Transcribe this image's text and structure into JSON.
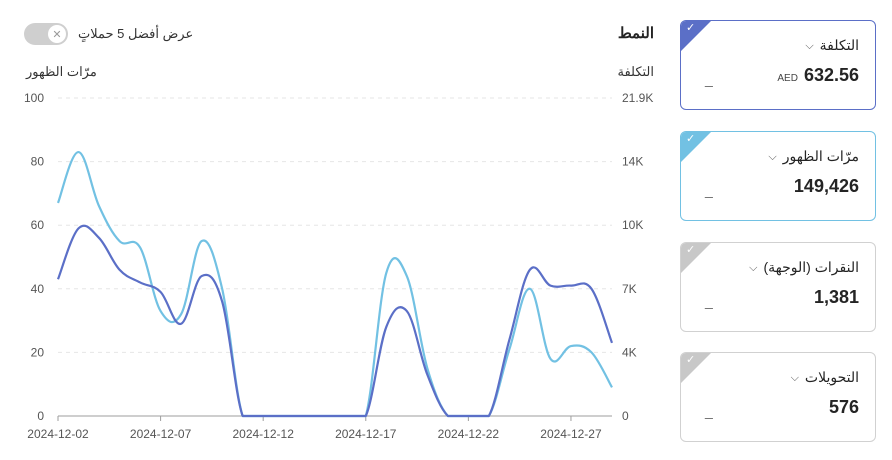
{
  "header": {
    "section_title": "النمط",
    "toggle_label": "عرض أفضل 5 حملاتٍ",
    "toggle_on": false,
    "left_axis_title": "مرّات الظهور",
    "right_axis_title": "التكلفة"
  },
  "chart_data": {
    "type": "line",
    "x": [
      "2024-12-02",
      "2024-12-03",
      "2024-12-04",
      "2024-12-05",
      "2024-12-06",
      "2024-12-07",
      "2024-12-08",
      "2024-12-09",
      "2024-12-10",
      "2024-12-11",
      "2024-12-12",
      "2024-12-13",
      "2024-12-14",
      "2024-12-15",
      "2024-12-16",
      "2024-12-17",
      "2024-12-18",
      "2024-12-19",
      "2024-12-20",
      "2024-12-21",
      "2024-12-22",
      "2024-12-23",
      "2024-12-24",
      "2024-12-25",
      "2024-12-26",
      "2024-12-27",
      "2024-12-28",
      "2024-12-29"
    ],
    "x_tick_labels": [
      "2024-12-02",
      "2024-12-07",
      "2024-12-12",
      "2024-12-17",
      "2024-12-22",
      "2024-12-27"
    ],
    "y_left_ticks": [
      "100",
      "80",
      "60",
      "40",
      "20",
      "0"
    ],
    "y_left_range": [
      0,
      100
    ],
    "y_right_ticks": [
      "21.9K",
      "14K",
      "10K",
      "7K",
      "4K",
      "0"
    ],
    "gridlines": true,
    "series": [
      {
        "color": "#5b6fc7",
        "values": [
          43,
          59,
          56,
          46,
          42,
          39,
          29,
          44,
          36,
          0,
          0,
          0,
          0,
          0,
          0,
          0,
          28,
          33,
          13,
          0,
          0,
          0,
          24,
          46,
          41,
          41,
          40,
          23
        ]
      },
      {
        "color": "#72c1e3",
        "values": [
          67,
          83,
          66,
          55,
          53,
          33,
          32,
          55,
          40,
          0,
          0,
          0,
          0,
          0,
          0,
          0,
          45,
          44,
          15,
          0,
          0,
          0,
          21,
          40,
          18,
          22,
          20,
          9
        ]
      }
    ]
  },
  "cards": [
    {
      "name": "التكلفة",
      "value": "632.56",
      "currency": "AED",
      "dash": "_",
      "selected": true,
      "accent": "#5b6fc7"
    },
    {
      "name": "مرّات الظهور",
      "value": "149,426",
      "dash": "_",
      "selected": true,
      "accent": "#72c1e3"
    },
    {
      "name": "النقرات (الوجهة)",
      "value": "1,381",
      "dash": "_",
      "selected": false,
      "accent": "#c8c8c8"
    },
    {
      "name": "التحويلات",
      "value": "576",
      "dash": "_",
      "selected": false,
      "accent": "#c8c8c8"
    }
  ]
}
